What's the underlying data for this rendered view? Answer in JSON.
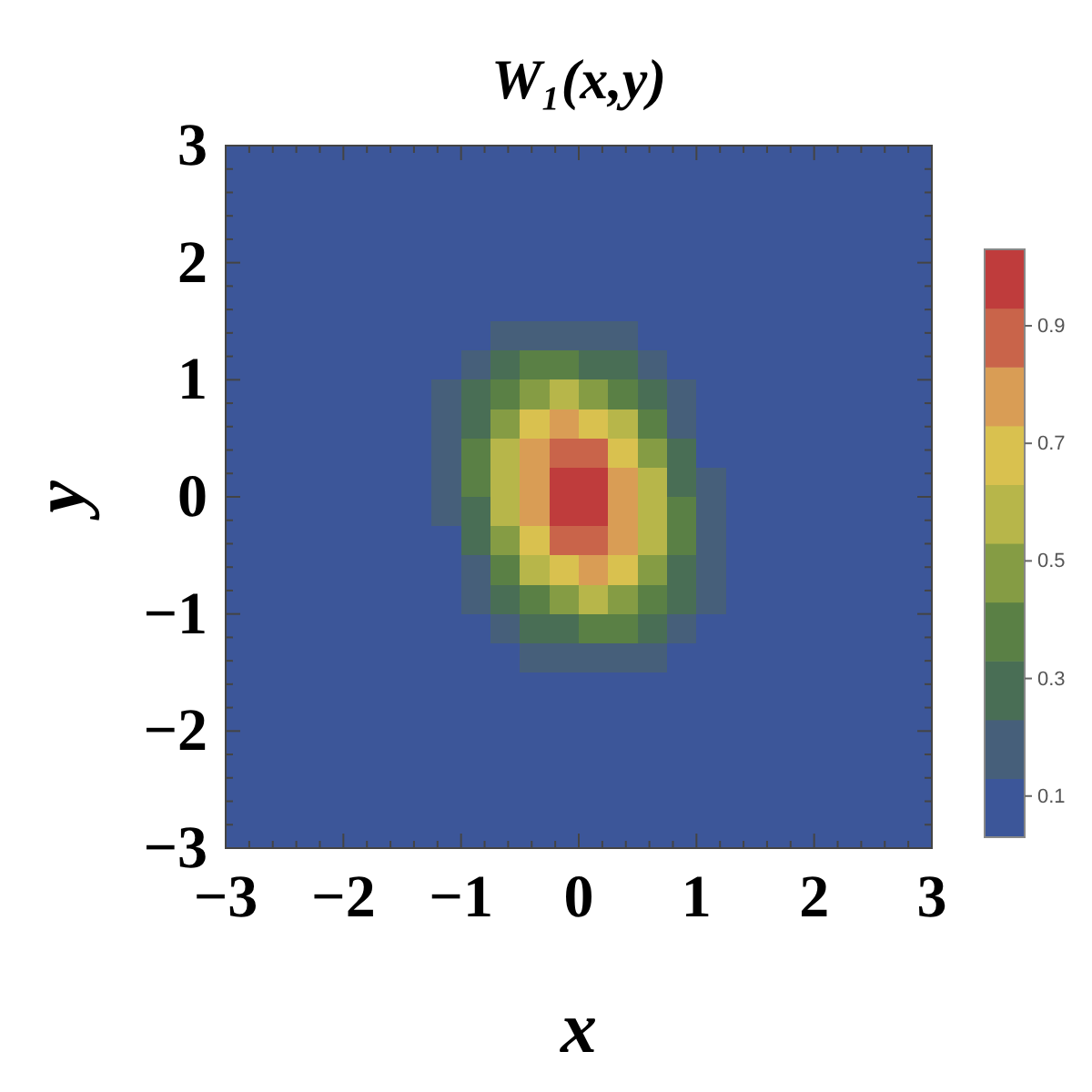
{
  "chart_data": {
    "type": "heatmap",
    "title": "W₁(x,y)",
    "xlabel": "x",
    "ylabel": "y",
    "xlim": [
      -3,
      3
    ],
    "ylim": [
      -3,
      3
    ],
    "xticks": [
      {
        "value": -3,
        "label": "−3"
      },
      {
        "value": -2,
        "label": "−2"
      },
      {
        "value": -1,
        "label": "−1"
      },
      0,
      1,
      2,
      3
    ],
    "yticks": [
      {
        "value": -3,
        "label": "−3"
      },
      {
        "value": -2,
        "label": "−2"
      },
      {
        "value": -1,
        "label": "−1"
      },
      0,
      1,
      2,
      3
    ],
    "clim": [
      0.03,
      1.03
    ],
    "cticks": [
      0.1,
      0.3,
      0.5,
      0.7,
      0.9
    ],
    "colors": [
      "#3c5699",
      "#465f7a",
      "#496e55",
      "#5a8045",
      "#859c44",
      "#b7b64a",
      "#d9c14f",
      "#d99d55",
      "#c9644a",
      "#bf3c3c"
    ],
    "cells": [
      [
        0,
        0,
        0,
        0,
        0,
        0,
        0,
        0,
        0,
        0,
        0,
        0,
        0,
        0,
        0,
        0,
        0,
        0,
        0,
        0,
        0,
        0,
        0,
        0
      ],
      [
        0,
        0,
        0,
        0,
        0,
        0,
        0,
        0,
        0,
        0,
        0,
        0,
        0,
        0,
        0,
        0,
        0,
        0,
        0,
        0,
        0,
        0,
        0,
        0
      ],
      [
        0,
        0,
        0,
        0,
        0,
        0,
        0,
        0,
        0,
        0.01,
        0.01,
        0.01,
        0,
        0,
        0,
        0,
        0,
        0,
        0,
        0,
        0,
        0,
        0,
        0
      ],
      [
        0,
        0,
        0,
        0,
        0,
        0,
        0.01,
        0.01,
        0.02,
        0.02,
        0.03,
        0.03,
        0.02,
        0.01,
        0.01,
        0,
        0,
        0,
        0,
        0,
        0,
        0,
        0,
        0
      ],
      [
        0,
        0,
        0,
        0,
        0,
        0,
        0.01,
        0.02,
        0.04,
        0.05,
        0.06,
        0.06,
        0.05,
        0.03,
        0.02,
        0.01,
        0,
        0,
        0,
        0,
        0,
        0,
        0,
        0
      ],
      [
        0,
        0,
        0,
        0,
        0,
        0.01,
        0.02,
        0.04,
        0.07,
        0.1,
        0.12,
        0.12,
        0.1,
        0.07,
        0.04,
        0.02,
        0.01,
        0,
        0,
        0,
        0,
        0,
        0,
        0
      ],
      [
        0,
        0,
        0,
        0,
        0,
        0.01,
        0.03,
        0.07,
        0.12,
        0.17,
        0.21,
        0.22,
        0.19,
        0.14,
        0.08,
        0.04,
        0.02,
        0.01,
        0,
        0,
        0,
        0,
        0,
        0
      ],
      [
        0,
        0,
        0,
        0,
        0,
        0.02,
        0.05,
        0.1,
        0.18,
        0.27,
        0.34,
        0.36,
        0.32,
        0.24,
        0.15,
        0.08,
        0.03,
        0.01,
        0,
        0,
        0,
        0,
        0,
        0
      ],
      [
        0,
        0,
        0,
        0,
        0,
        0.02,
        0.06,
        0.13,
        0.25,
        0.38,
        0.5,
        0.54,
        0.5,
        0.38,
        0.24,
        0.13,
        0.06,
        0.02,
        0.01,
        0,
        0,
        0,
        0,
        0
      ],
      [
        0,
        0,
        0,
        0,
        0,
        0.03,
        0.07,
        0.16,
        0.31,
        0.49,
        0.66,
        0.73,
        0.68,
        0.54,
        0.35,
        0.19,
        0.09,
        0.03,
        0.01,
        0,
        0,
        0,
        0,
        0
      ],
      [
        0,
        0,
        0,
        0,
        0,
        0.03,
        0.08,
        0.18,
        0.35,
        0.57,
        0.77,
        0.89,
        0.85,
        0.69,
        0.46,
        0.26,
        0.12,
        0.05,
        0.02,
        0,
        0,
        0,
        0,
        0
      ],
      [
        0,
        0,
        0,
        0,
        0,
        0.03,
        0.07,
        0.17,
        0.35,
        0.59,
        0.83,
        0.97,
        0.96,
        0.79,
        0.55,
        0.32,
        0.15,
        0.06,
        0.02,
        0,
        0,
        0,
        0,
        0
      ],
      [
        0,
        0,
        0,
        0,
        0,
        0.02,
        0.06,
        0.15,
        0.32,
        0.55,
        0.79,
        0.96,
        0.97,
        0.83,
        0.59,
        0.35,
        0.17,
        0.07,
        0.03,
        0,
        0,
        0,
        0,
        0
      ],
      [
        0,
        0,
        0,
        0,
        0,
        0.02,
        0.05,
        0.12,
        0.26,
        0.46,
        0.69,
        0.85,
        0.89,
        0.77,
        0.57,
        0.35,
        0.18,
        0.08,
        0.03,
        0,
        0,
        0,
        0,
        0
      ],
      [
        0,
        0,
        0,
        0,
        0,
        0.01,
        0.03,
        0.09,
        0.19,
        0.35,
        0.54,
        0.68,
        0.73,
        0.66,
        0.49,
        0.31,
        0.16,
        0.07,
        0.03,
        0,
        0,
        0,
        0,
        0
      ],
      [
        0,
        0,
        0,
        0,
        0,
        0.01,
        0.02,
        0.06,
        0.13,
        0.24,
        0.38,
        0.5,
        0.54,
        0.5,
        0.38,
        0.25,
        0.13,
        0.06,
        0.02,
        0,
        0,
        0,
        0,
        0
      ],
      [
        0,
        0,
        0,
        0,
        0,
        0,
        0.01,
        0.03,
        0.08,
        0.15,
        0.24,
        0.32,
        0.36,
        0.34,
        0.27,
        0.18,
        0.1,
        0.05,
        0.02,
        0,
        0,
        0,
        0,
        0
      ],
      [
        0,
        0,
        0,
        0,
        0,
        0,
        0.01,
        0.02,
        0.04,
        0.08,
        0.14,
        0.19,
        0.22,
        0.21,
        0.17,
        0.12,
        0.07,
        0.03,
        0.01,
        0,
        0,
        0,
        0,
        0
      ],
      [
        0,
        0,
        0,
        0,
        0,
        0,
        0,
        0.01,
        0.02,
        0.04,
        0.07,
        0.1,
        0.12,
        0.12,
        0.1,
        0.07,
        0.04,
        0.02,
        0.01,
        0,
        0,
        0,
        0,
        0
      ],
      [
        0,
        0,
        0,
        0,
        0,
        0,
        0,
        0,
        0.01,
        0.02,
        0.03,
        0.05,
        0.06,
        0.06,
        0.05,
        0.04,
        0.02,
        0.01,
        0,
        0,
        0,
        0,
        0,
        0
      ],
      [
        0,
        0,
        0,
        0,
        0,
        0,
        0,
        0,
        0,
        0.01,
        0.01,
        0.02,
        0.03,
        0.03,
        0.02,
        0.02,
        0.01,
        0.01,
        0,
        0,
        0,
        0,
        0,
        0
      ],
      [
        0,
        0,
        0,
        0,
        0,
        0,
        0,
        0,
        0,
        0,
        0,
        0,
        0.01,
        0.01,
        0.01,
        0,
        0,
        0,
        0,
        0,
        0,
        0,
        0,
        0
      ],
      [
        0,
        0,
        0,
        0,
        0,
        0,
        0,
        0,
        0,
        0,
        0,
        0,
        0,
        0,
        0,
        0,
        0,
        0,
        0,
        0,
        0,
        0,
        0,
        0
      ],
      [
        0,
        0,
        0,
        0,
        0,
        0,
        0,
        0,
        0,
        0,
        0,
        0,
        0,
        0,
        0,
        0,
        0,
        0,
        0,
        0,
        0,
        0,
        0,
        0
      ]
    ]
  }
}
